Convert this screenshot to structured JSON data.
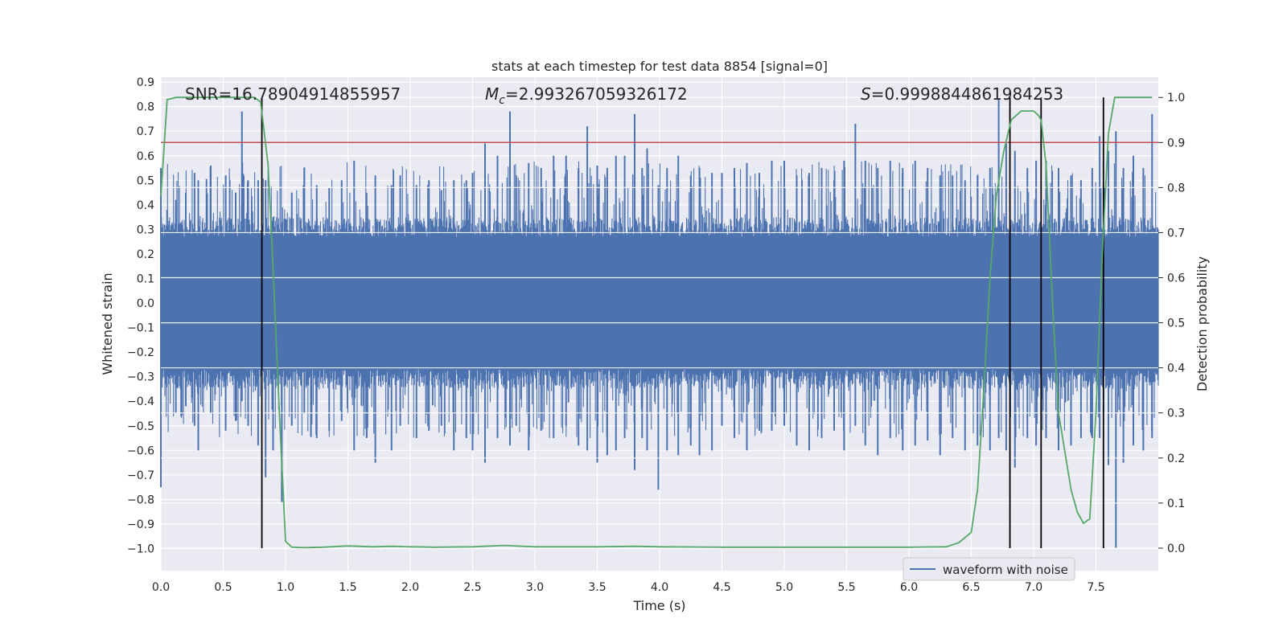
{
  "chart_data": {
    "type": "line",
    "title": "stats at each timestep for test data 8854 [signal=0]",
    "xlabel": "Time (s)",
    "ylabel": "Whitened strain",
    "y2label": "Detection probability",
    "xlim": [
      0,
      8
    ],
    "ylim": [
      -1.09,
      0.92
    ],
    "y2lim": [
      -0.05,
      1.045
    ],
    "xticks": [
      "0.0",
      "0.5",
      "1.0",
      "1.5",
      "2.0",
      "2.5",
      "3.0",
      "3.5",
      "4.0",
      "4.5",
      "5.0",
      "5.5",
      "6.0",
      "6.5",
      "7.0",
      "7.5"
    ],
    "yticks": [
      "0.9",
      "0.8",
      "0.7",
      "0.6",
      "0.5",
      "0.4",
      "0.3",
      "0.2",
      "0.1",
      "0.0",
      "−0.1",
      "−0.2",
      "−0.3",
      "−0.4",
      "−0.5",
      "−0.6",
      "−0.7",
      "−0.8",
      "−0.9",
      "−1.0"
    ],
    "y2ticks": [
      "0.0",
      "0.1",
      "0.2",
      "0.3",
      "0.4",
      "0.5",
      "0.6",
      "0.7",
      "0.8",
      "0.9",
      "1.0"
    ],
    "annotations": {
      "snr": "SNR=16.78904914855957",
      "mc_symbol": "M",
      "mc_sub": "c",
      "mc_value": "=2.993267059326172",
      "s_symbol": "S",
      "s_value": "=0.9998844861984253"
    },
    "threshold": {
      "value": 0.9,
      "axis": "right",
      "color": "#c44e52"
    },
    "detection_markers": [
      0.81,
      6.81,
      7.06,
      7.56
    ],
    "legend": {
      "label": "waveform with noise",
      "position": "lower-right"
    },
    "waveform": {
      "name": "waveform with noise",
      "color": "#4c72b0",
      "band_core": 0.27,
      "spikes": [
        [
          0.0,
          0.55,
          -0.75
        ],
        [
          0.05,
          0.38,
          -0.3
        ],
        [
          0.12,
          0.42,
          -0.45
        ],
        [
          0.2,
          0.45,
          -0.42
        ],
        [
          0.27,
          0.53,
          -0.5
        ],
        [
          0.3,
          0.5,
          -0.6
        ],
        [
          0.4,
          0.56,
          -0.45
        ],
        [
          0.52,
          0.52,
          -0.52
        ],
        [
          0.6,
          0.45,
          -0.48
        ],
        [
          0.65,
          0.78,
          -0.4
        ],
        [
          0.7,
          0.5,
          -0.5
        ],
        [
          0.78,
          0.5,
          -0.58
        ],
        [
          0.84,
          0.5,
          -0.71
        ],
        [
          0.9,
          0.35,
          -0.6
        ],
        [
          0.97,
          0.33,
          -0.81
        ],
        [
          1.05,
          0.45,
          -0.5
        ],
        [
          1.15,
          0.55,
          -0.45
        ],
        [
          1.25,
          0.48,
          -0.55
        ],
        [
          1.35,
          0.47,
          -0.52
        ],
        [
          1.45,
          0.5,
          -0.48
        ],
        [
          1.55,
          0.58,
          -0.6
        ],
        [
          1.65,
          0.45,
          -0.55
        ],
        [
          1.72,
          0.52,
          -0.65
        ],
        [
          1.85,
          0.48,
          -0.6
        ],
        [
          1.92,
          0.52,
          -0.5
        ],
        [
          2.05,
          0.48,
          -0.55
        ],
        [
          2.15,
          0.5,
          -0.52
        ],
        [
          2.25,
          0.46,
          -0.5
        ],
        [
          2.35,
          0.5,
          -0.6
        ],
        [
          2.45,
          0.5,
          -0.55
        ],
        [
          2.5,
          0.53,
          -0.6
        ],
        [
          2.6,
          0.65,
          -0.65
        ],
        [
          2.7,
          0.6,
          -0.55
        ],
        [
          2.8,
          0.78,
          -0.58
        ],
        [
          2.85,
          0.52,
          -0.5
        ],
        [
          2.95,
          0.57,
          -0.6
        ],
        [
          3.05,
          0.55,
          -0.52
        ],
        [
          3.15,
          0.6,
          -0.55
        ],
        [
          3.25,
          0.6,
          -0.5
        ],
        [
          3.35,
          0.55,
          -0.58
        ],
        [
          3.42,
          0.72,
          -0.6
        ],
        [
          3.5,
          0.56,
          -0.65
        ],
        [
          3.58,
          0.55,
          -0.62
        ],
        [
          3.65,
          0.6,
          -0.6
        ],
        [
          3.72,
          0.6,
          -0.55
        ],
        [
          3.8,
          0.77,
          -0.68
        ],
        [
          3.86,
          0.55,
          -0.55
        ],
        [
          3.9,
          0.63,
          -0.6
        ],
        [
          3.99,
          0.48,
          -0.76
        ],
        [
          4.06,
          0.55,
          -0.6
        ],
        [
          4.15,
          0.6,
          -0.62
        ],
        [
          4.25,
          0.52,
          -0.58
        ],
        [
          4.32,
          0.55,
          -0.62
        ],
        [
          4.42,
          0.53,
          -0.6
        ],
        [
          4.5,
          0.53,
          -0.5
        ],
        [
          4.6,
          0.55,
          -0.55
        ],
        [
          4.7,
          0.57,
          -0.6
        ],
        [
          4.8,
          0.53,
          -0.52
        ],
        [
          4.9,
          0.58,
          -0.52
        ],
        [
          5.0,
          0.58,
          -0.5
        ],
        [
          5.1,
          0.52,
          -0.58
        ],
        [
          5.2,
          0.53,
          -0.6
        ],
        [
          5.3,
          0.55,
          -0.55
        ],
        [
          5.4,
          0.5,
          -0.52
        ],
        [
          5.48,
          0.58,
          -0.6
        ],
        [
          5.57,
          0.73,
          -0.5
        ],
        [
          5.65,
          0.58,
          -0.58
        ],
        [
          5.75,
          0.55,
          -0.62
        ],
        [
          5.85,
          0.58,
          -0.55
        ],
        [
          5.95,
          0.55,
          -0.6
        ],
        [
          6.05,
          0.58,
          -0.58
        ],
        [
          6.15,
          0.55,
          -0.56
        ],
        [
          6.25,
          0.52,
          -0.62
        ],
        [
          6.35,
          0.52,
          -0.55
        ],
        [
          6.45,
          0.5,
          -0.6
        ],
        [
          6.55,
          0.52,
          -0.58
        ],
        [
          6.65,
          0.55,
          -0.6
        ],
        [
          6.72,
          0.83,
          -0.55
        ],
        [
          6.78,
          0.65,
          -0.6
        ],
        [
          6.85,
          0.62,
          -0.67
        ],
        [
          6.95,
          0.55,
          -0.55
        ],
        [
          7.02,
          0.58,
          -0.58
        ],
        [
          7.1,
          0.58,
          -0.55
        ],
        [
          7.2,
          0.55,
          -0.6
        ],
        [
          7.3,
          0.52,
          -0.58
        ],
        [
          7.38,
          0.5,
          -0.55
        ],
        [
          7.47,
          0.55,
          -0.55
        ],
        [
          7.53,
          0.68,
          -0.55
        ],
        [
          7.6,
          0.62,
          -0.66
        ],
        [
          7.66,
          0.7,
          -1.0
        ],
        [
          7.72,
          0.55,
          -0.65
        ],
        [
          7.8,
          0.6,
          -0.58
        ],
        [
          7.88,
          0.55,
          -0.6
        ],
        [
          7.95,
          0.77,
          -0.55
        ]
      ]
    },
    "probability": {
      "color": "#55a868",
      "t": [
        0.0,
        0.05,
        0.12,
        0.2,
        0.3,
        0.4,
        0.5,
        0.6,
        0.7,
        0.75,
        0.8,
        0.86,
        0.9,
        0.95,
        1.0,
        1.05,
        1.15,
        1.3,
        1.5,
        1.7,
        1.85,
        2.0,
        2.2,
        2.5,
        2.75,
        3.0,
        3.5,
        3.8,
        4.0,
        4.5,
        5.0,
        5.5,
        6.0,
        6.3,
        6.4,
        6.5,
        6.55,
        6.6,
        6.65,
        6.7,
        6.76,
        6.82,
        6.9,
        7.0,
        7.04,
        7.06,
        7.1,
        7.15,
        7.2,
        7.3,
        7.35,
        7.4,
        7.45,
        7.5,
        7.55,
        7.6,
        7.65,
        7.7,
        7.8,
        7.95
      ],
      "p": [
        0.78,
        0.995,
        1.0,
        1.0,
        1.0,
        1.0,
        1.0,
        1.0,
        1.0,
        1.0,
        0.99,
        0.85,
        0.62,
        0.3,
        0.015,
        0.002,
        0.001,
        0.002,
        0.005,
        0.003,
        0.004,
        0.003,
        0.002,
        0.003,
        0.006,
        0.003,
        0.003,
        0.004,
        0.003,
        0.002,
        0.002,
        0.002,
        0.002,
        0.003,
        0.012,
        0.035,
        0.13,
        0.35,
        0.6,
        0.78,
        0.88,
        0.95,
        0.97,
        0.97,
        0.96,
        0.95,
        0.85,
        0.55,
        0.3,
        0.13,
        0.08,
        0.055,
        0.065,
        0.3,
        0.65,
        0.92,
        1.0,
        1.0,
        1.0,
        1.0
      ]
    }
  }
}
